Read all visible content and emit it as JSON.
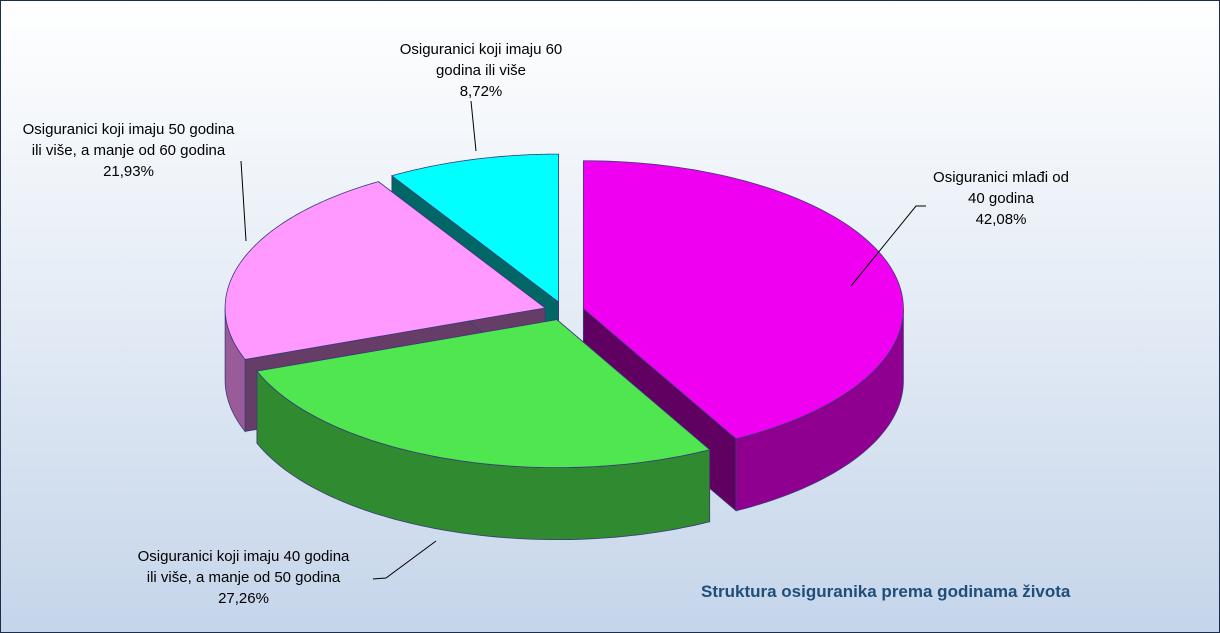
{
  "chart_data": {
    "type": "pie",
    "title": "Struktura osiguranika prema godinama života",
    "categories": [
      "Osiguranici mlađi od 40 godina",
      "Osiguranici koji imaju 40 godina ili više, a manje od 50 godina",
      "Osiguranici koji imaju 50 godina ili više, a manje od 60 godina",
      "Osiguranici koji imaju 60 godina ili više"
    ],
    "values": [
      42.08,
      27.26,
      21.93,
      8.72
    ],
    "value_labels": [
      "42,08%",
      "27,26%",
      "21,93%",
      "8,72%"
    ],
    "colors": [
      "#f000f0",
      "#50e650",
      "#ff99ff",
      "#00ffff"
    ]
  }
}
